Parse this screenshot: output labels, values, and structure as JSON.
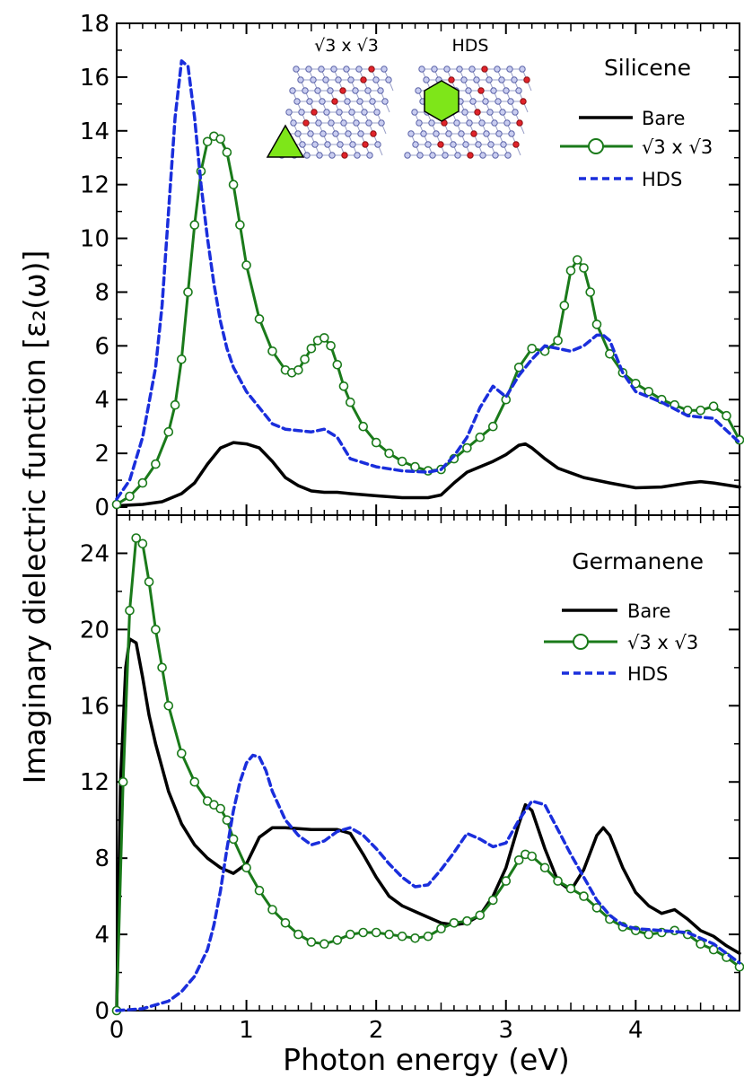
{
  "chart_data": [
    {
      "type": "line",
      "panel": "top",
      "title": "Silicene",
      "xlabel": "Photon energy (eV)",
      "ylabel": "Imaginary dielectric function [ε₂(ω)]",
      "xlim": [
        0,
        4.8
      ],
      "ylim": [
        -0.3,
        18
      ],
      "xticks": [
        0,
        1,
        2,
        3,
        4
      ],
      "yticks": [
        0,
        2,
        4,
        6,
        8,
        10,
        12,
        14,
        16,
        18
      ],
      "legend_position": "top-right",
      "insets": [
        "√3 x √3",
        "HDS"
      ],
      "series": [
        {
          "name": "Bare",
          "color": "#000000",
          "style": "solid",
          "x": [
            0,
            0.2,
            0.35,
            0.5,
            0.6,
            0.7,
            0.8,
            0.9,
            1.0,
            1.1,
            1.2,
            1.3,
            1.4,
            1.5,
            1.6,
            1.7,
            1.8,
            2.0,
            2.2,
            2.4,
            2.5,
            2.6,
            2.7,
            2.8,
            2.9,
            3.0,
            3.1,
            3.15,
            3.2,
            3.3,
            3.4,
            3.6,
            3.8,
            4.0,
            4.2,
            4.4,
            4.5,
            4.6,
            4.8
          ],
          "y": [
            0.05,
            0.1,
            0.2,
            0.5,
            0.9,
            1.6,
            2.2,
            2.4,
            2.35,
            2.2,
            1.7,
            1.1,
            0.8,
            0.6,
            0.55,
            0.55,
            0.5,
            0.42,
            0.35,
            0.35,
            0.45,
            0.9,
            1.3,
            1.5,
            1.7,
            1.95,
            2.3,
            2.35,
            2.2,
            1.8,
            1.45,
            1.1,
            0.9,
            0.72,
            0.75,
            0.9,
            0.95,
            0.9,
            0.75
          ]
        },
        {
          "name": "√3 x √3",
          "color": "#1a7a1a",
          "style": "solid-open-circles",
          "x": [
            0,
            0.1,
            0.2,
            0.3,
            0.4,
            0.45,
            0.5,
            0.55,
            0.6,
            0.65,
            0.7,
            0.75,
            0.8,
            0.85,
            0.9,
            0.95,
            1.0,
            1.1,
            1.2,
            1.3,
            1.35,
            1.4,
            1.45,
            1.5,
            1.55,
            1.6,
            1.65,
            1.7,
            1.75,
            1.8,
            1.9,
            2.0,
            2.1,
            2.2,
            2.3,
            2.4,
            2.5,
            2.6,
            2.7,
            2.8,
            2.9,
            3.0,
            3.1,
            3.2,
            3.3,
            3.4,
            3.45,
            3.5,
            3.55,
            3.6,
            3.65,
            3.7,
            3.8,
            3.9,
            4.0,
            4.1,
            4.2,
            4.3,
            4.4,
            4.5,
            4.6,
            4.7,
            4.8
          ],
          "y": [
            0.1,
            0.4,
            0.9,
            1.6,
            2.8,
            3.8,
            5.5,
            8.0,
            10.5,
            12.5,
            13.6,
            13.8,
            13.7,
            13.2,
            12.0,
            10.5,
            9.0,
            7.0,
            5.8,
            5.1,
            5.0,
            5.1,
            5.5,
            5.9,
            6.2,
            6.3,
            6.0,
            5.3,
            4.5,
            3.9,
            3.0,
            2.4,
            2.0,
            1.7,
            1.5,
            1.35,
            1.4,
            1.8,
            2.2,
            2.6,
            3.0,
            4.0,
            5.2,
            5.9,
            5.8,
            6.2,
            7.5,
            8.8,
            9.2,
            8.9,
            8.0,
            6.8,
            5.7,
            5.0,
            4.6,
            4.3,
            4.0,
            3.8,
            3.6,
            3.6,
            3.75,
            3.4,
            2.5
          ]
        },
        {
          "name": "HDS",
          "color": "#1a2edc",
          "style": "dashed",
          "x": [
            0,
            0.1,
            0.2,
            0.3,
            0.35,
            0.4,
            0.45,
            0.5,
            0.55,
            0.6,
            0.65,
            0.7,
            0.75,
            0.8,
            0.85,
            0.9,
            1.0,
            1.1,
            1.2,
            1.3,
            1.4,
            1.5,
            1.6,
            1.7,
            1.8,
            2.0,
            2.2,
            2.4,
            2.5,
            2.6,
            2.7,
            2.8,
            2.9,
            3.0,
            3.1,
            3.2,
            3.3,
            3.4,
            3.5,
            3.6,
            3.7,
            3.75,
            3.8,
            3.9,
            4.0,
            4.2,
            4.4,
            4.6,
            4.8
          ],
          "y": [
            0.3,
            1.0,
            2.6,
            5.2,
            7.5,
            11.0,
            14.5,
            16.6,
            16.4,
            14.5,
            12.0,
            10.0,
            8.3,
            6.9,
            5.9,
            5.2,
            4.3,
            3.7,
            3.1,
            2.9,
            2.85,
            2.8,
            2.9,
            2.6,
            1.8,
            1.5,
            1.35,
            1.3,
            1.4,
            1.9,
            2.6,
            3.7,
            4.5,
            4.1,
            4.9,
            5.5,
            6.0,
            5.9,
            5.8,
            6.0,
            6.4,
            6.4,
            6.2,
            5.0,
            4.3,
            3.9,
            3.4,
            3.3,
            2.4
          ]
        }
      ]
    },
    {
      "type": "line",
      "panel": "bottom",
      "title": "Germanene",
      "xlabel": "Photon energy (eV)",
      "ylabel": "Imaginary dielectric function [ε₂(ω)]",
      "xlim": [
        0,
        4.8
      ],
      "ylim": [
        0,
        26
      ],
      "xticks": [
        0,
        1,
        2,
        3,
        4
      ],
      "xtick_labels": [
        "0",
        "1",
        "2",
        "3",
        "4"
      ],
      "yticks": [
        0,
        4,
        8,
        12,
        16,
        20,
        24
      ],
      "legend_position": "top-right",
      "series": [
        {
          "name": "Bare",
          "color": "#000000",
          "style": "solid",
          "x": [
            0,
            0.03,
            0.07,
            0.1,
            0.15,
            0.2,
            0.25,
            0.3,
            0.4,
            0.5,
            0.6,
            0.7,
            0.8,
            0.9,
            1.0,
            1.1,
            1.2,
            1.3,
            1.5,
            1.7,
            1.8,
            1.9,
            2.0,
            2.1,
            2.2,
            2.3,
            2.4,
            2.5,
            2.6,
            2.7,
            2.8,
            2.9,
            3.0,
            3.1,
            3.15,
            3.2,
            3.3,
            3.4,
            3.5,
            3.6,
            3.7,
            3.75,
            3.8,
            3.9,
            4.0,
            4.1,
            4.2,
            4.3,
            4.4,
            4.5,
            4.6,
            4.7,
            4.8
          ],
          "y": [
            0,
            12,
            18,
            19.5,
            19.3,
            17.5,
            15.5,
            14.0,
            11.5,
            9.8,
            8.7,
            8.0,
            7.5,
            7.2,
            7.7,
            9.1,
            9.6,
            9.6,
            9.5,
            9.5,
            9.3,
            8.2,
            7.0,
            6.0,
            5.5,
            5.2,
            4.9,
            4.6,
            4.5,
            4.6,
            5.0,
            6.0,
            7.5,
            9.8,
            10.8,
            10.5,
            8.5,
            6.8,
            6.3,
            7.4,
            9.2,
            9.6,
            9.2,
            7.5,
            6.2,
            5.5,
            5.1,
            5.3,
            4.8,
            4.2,
            3.9,
            3.4,
            3.0
          ]
        },
        {
          "name": "√3 x √3",
          "color": "#1a7a1a",
          "style": "solid-open-circles",
          "x": [
            0,
            0.05,
            0.1,
            0.15,
            0.2,
            0.25,
            0.3,
            0.35,
            0.4,
            0.5,
            0.6,
            0.7,
            0.75,
            0.8,
            0.85,
            0.9,
            1.0,
            1.1,
            1.2,
            1.3,
            1.4,
            1.5,
            1.6,
            1.7,
            1.8,
            1.9,
            2.0,
            2.1,
            2.2,
            2.3,
            2.4,
            2.5,
            2.6,
            2.7,
            2.8,
            2.9,
            3.0,
            3.1,
            3.15,
            3.2,
            3.3,
            3.4,
            3.5,
            3.6,
            3.7,
            3.8,
            3.9,
            4.0,
            4.1,
            4.2,
            4.3,
            4.4,
            4.5,
            4.6,
            4.7,
            4.8
          ],
          "y": [
            0,
            12,
            21,
            24.8,
            24.5,
            22.5,
            20.0,
            18.0,
            16.0,
            13.5,
            12.0,
            11.0,
            10.8,
            10.6,
            10.0,
            9.0,
            7.5,
            6.3,
            5.3,
            4.6,
            4.0,
            3.6,
            3.5,
            3.7,
            4.0,
            4.1,
            4.1,
            4.0,
            3.9,
            3.8,
            3.9,
            4.3,
            4.6,
            4.7,
            5.0,
            5.8,
            6.8,
            7.9,
            8.2,
            8.1,
            7.5,
            6.8,
            6.4,
            6.0,
            5.4,
            4.8,
            4.4,
            4.2,
            4.0,
            4.1,
            4.2,
            4.0,
            3.5,
            3.2,
            2.8,
            2.3
          ]
        },
        {
          "name": "HDS",
          "color": "#1a2edc",
          "style": "dashed",
          "x": [
            0,
            0.2,
            0.4,
            0.5,
            0.6,
            0.7,
            0.75,
            0.8,
            0.85,
            0.9,
            0.95,
            1.0,
            1.05,
            1.1,
            1.15,
            1.2,
            1.3,
            1.4,
            1.5,
            1.6,
            1.7,
            1.8,
            1.9,
            2.0,
            2.1,
            2.2,
            2.3,
            2.4,
            2.5,
            2.6,
            2.7,
            2.8,
            2.9,
            3.0,
            3.1,
            3.2,
            3.3,
            3.4,
            3.5,
            3.6,
            3.7,
            3.8,
            3.9,
            4.0,
            4.2,
            4.4,
            4.6,
            4.8
          ],
          "y": [
            0,
            0.1,
            0.5,
            1.0,
            1.8,
            3.2,
            4.5,
            6.3,
            8.5,
            10.5,
            12.0,
            13.0,
            13.4,
            13.3,
            12.6,
            11.5,
            10.0,
            9.2,
            8.7,
            8.9,
            9.4,
            9.6,
            9.2,
            8.5,
            7.7,
            7.0,
            6.5,
            6.6,
            7.4,
            8.3,
            9.3,
            9.0,
            8.6,
            8.8,
            10.0,
            11.0,
            10.8,
            9.5,
            8.2,
            7.0,
            5.8,
            5.0,
            4.5,
            4.3,
            4.2,
            4.1,
            3.5,
            2.5
          ]
        }
      ]
    }
  ]
}
